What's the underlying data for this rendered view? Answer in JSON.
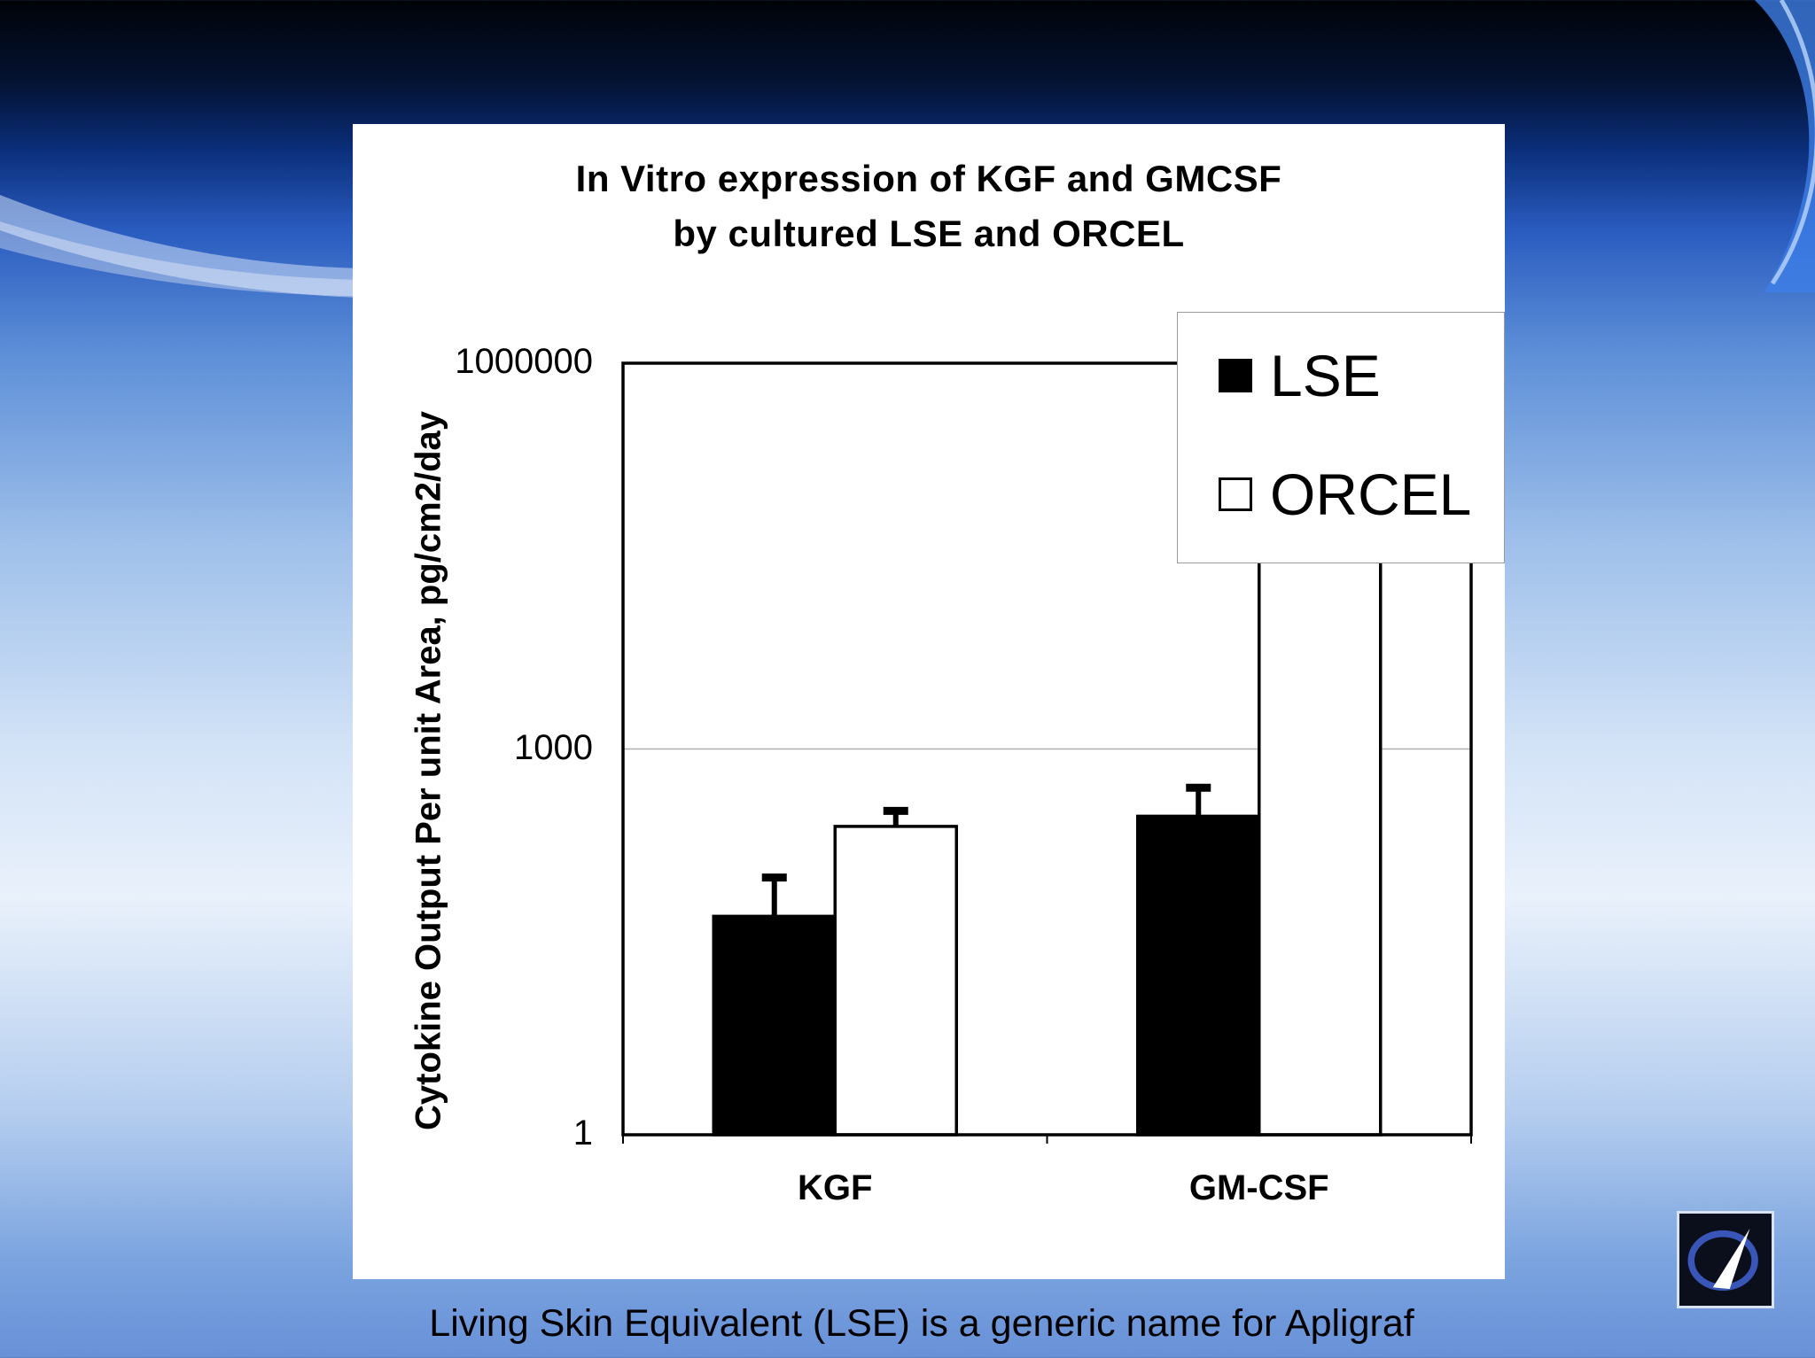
{
  "slide": {
    "caption": "Living Skin Equivalent (LSE) is a generic name for Apligraf"
  },
  "colors": {
    "lse": "#000000",
    "orcel": "#ffffff",
    "gridline": "#b0b0b0"
  },
  "icons": {
    "logo": "company-logo-icon"
  },
  "chart_data": {
    "type": "bar",
    "title_line1": "In Vitro expression of KGF and GMCSF",
    "title_line2": "by cultured LSE and ORCEL",
    "ylabel": "Cytokine Output Per unit Area, pg/cm2/day",
    "xlabel": "",
    "yscale": "log",
    "ylim": [
      1,
      1000000
    ],
    "y_ticks": [
      "1000000",
      "1000",
      "1"
    ],
    "categories": [
      "KGF",
      "GM-CSF"
    ],
    "series": [
      {
        "name": "LSE",
        "values": [
          50,
          300
        ],
        "error_upper": [
          100,
          500
        ]
      },
      {
        "name": "ORCEL",
        "values": [
          250,
          60000
        ],
        "error_upper": [
          330,
          120000
        ]
      }
    ],
    "legend_position": "top-right",
    "grid": "horizontal major"
  }
}
